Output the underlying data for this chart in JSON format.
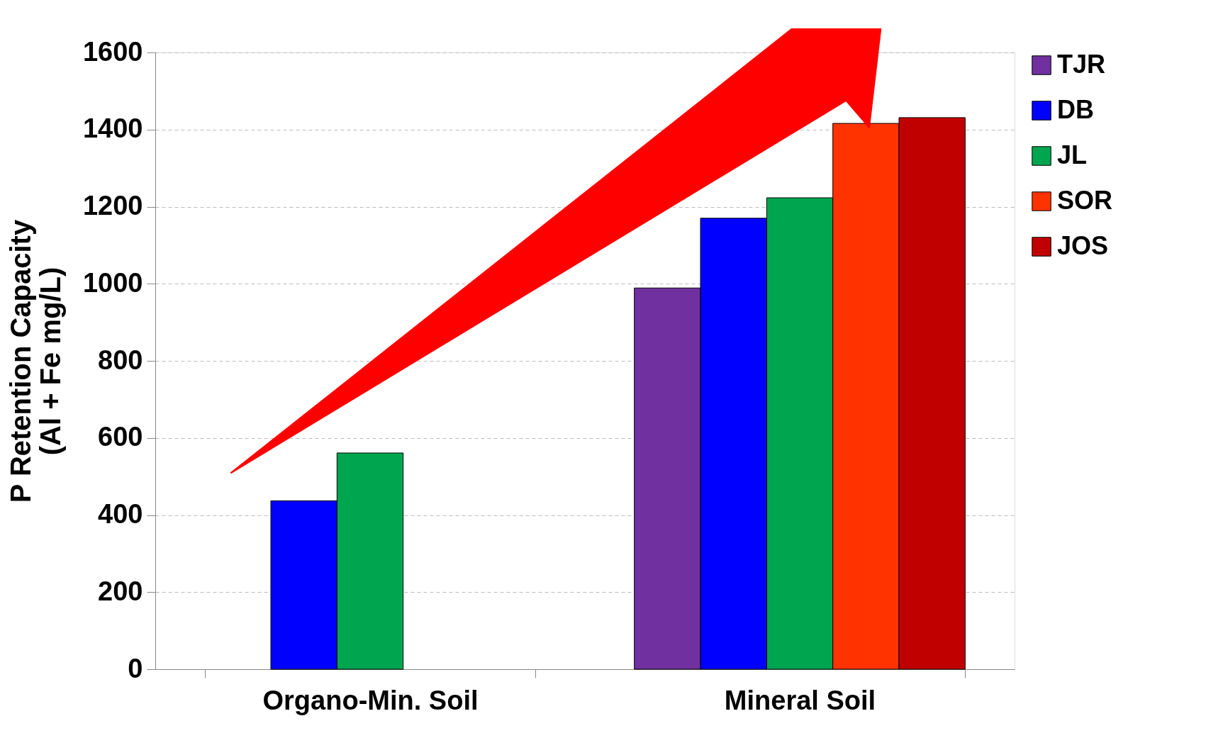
{
  "chart_data": {
    "type": "bar",
    "ylabel": "P Retention  Capacity\n(Al + Fe mg/L)",
    "categories": [
      "Organo-Min. Soil",
      "Mineral Soil"
    ],
    "series": [
      {
        "name": "TJR",
        "color": "#7030a0",
        "values": [
          null,
          989
        ]
      },
      {
        "name": "DB",
        "color": "#0000ff",
        "values": [
          437,
          1170
        ]
      },
      {
        "name": "JL",
        "color": "#00a550",
        "values": [
          561,
          1223
        ]
      },
      {
        "name": "SOR",
        "color": "#ff3300",
        "values": [
          null,
          1416
        ]
      },
      {
        "name": "JOS",
        "color": "#c00000",
        "values": [
          null,
          1431
        ]
      }
    ],
    "ylim": [
      0,
      1600
    ],
    "yticks": [
      0,
      200,
      400,
      600,
      800,
      {
        "value": 1000,
        "label": "1000"
      },
      {
        "value": 1200,
        "label": "1200"
      },
      {
        "value": 1400,
        "label": "1400"
      },
      {
        "value": 1600,
        "label": "1600"
      }
    ],
    "grid": "y",
    "legend": "right"
  }
}
